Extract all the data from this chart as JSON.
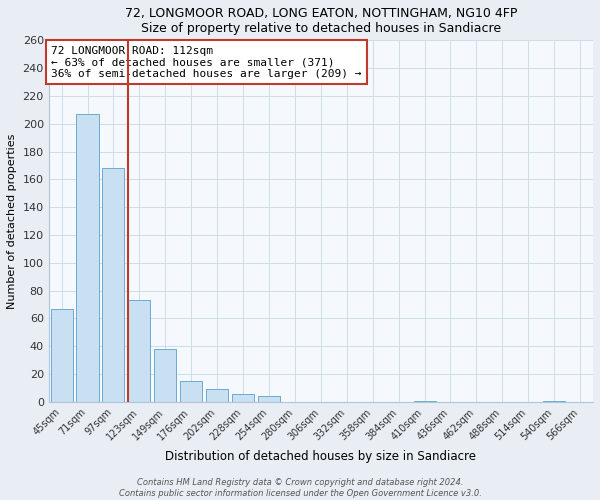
{
  "title": "72, LONGMOOR ROAD, LONG EATON, NOTTINGHAM, NG10 4FP",
  "subtitle": "Size of property relative to detached houses in Sandiacre",
  "xlabel": "Distribution of detached houses by size in Sandiacre",
  "ylabel": "Number of detached properties",
  "bar_labels": [
    "45sqm",
    "71sqm",
    "97sqm",
    "123sqm",
    "149sqm",
    "176sqm",
    "202sqm",
    "228sqm",
    "254sqm",
    "280sqm",
    "306sqm",
    "332sqm",
    "358sqm",
    "384sqm",
    "410sqm",
    "436sqm",
    "462sqm",
    "488sqm",
    "514sqm",
    "540sqm",
    "566sqm"
  ],
  "bar_values": [
    67,
    207,
    168,
    73,
    38,
    15,
    9,
    6,
    4,
    0,
    0,
    0,
    0,
    0,
    1,
    0,
    0,
    0,
    0,
    1,
    0
  ],
  "bar_color": "#c9dff2",
  "bar_edge_color": "#6aaad4",
  "ylim": [
    0,
    260
  ],
  "yticks": [
    0,
    20,
    40,
    60,
    80,
    100,
    120,
    140,
    160,
    180,
    200,
    220,
    240,
    260
  ],
  "vline_color": "#c0392b",
  "annotation_title": "72 LONGMOOR ROAD: 112sqm",
  "annotation_line1": "← 63% of detached houses are smaller (371)",
  "annotation_line2": "36% of semi-detached houses are larger (209) →",
  "annotation_box_color": "#c0392b",
  "footer1": "Contains HM Land Registry data © Crown copyright and database right 2024.",
  "footer2": "Contains public sector information licensed under the Open Government Licence v3.0.",
  "background_color": "#e8eef4",
  "plot_bg_color": "#f5f8fc",
  "grid_color": "#c8d8e8"
}
